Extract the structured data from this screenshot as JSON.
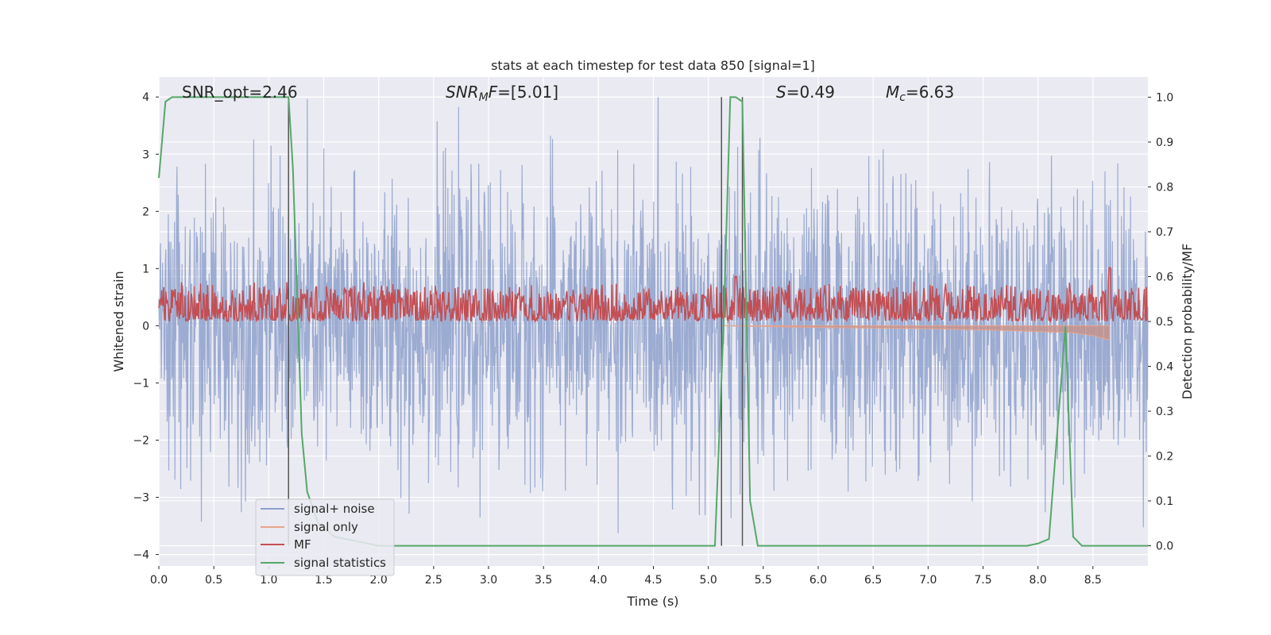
{
  "chart_data": {
    "type": "line",
    "title": "stats at each timestep for test data 850 [signal=1]",
    "xlabel": "Time (s)",
    "ylabel_left": "Whitened strain",
    "ylabel_right": "Detection probability/MF",
    "xlim": [
      0.0,
      9.0
    ],
    "ylim_left": [
      -4.2,
      4.35
    ],
    "ylim_right": [
      -0.045,
      1.045
    ],
    "x_ticks": [
      "0.0",
      "0.5",
      "1.0",
      "1.5",
      "2.0",
      "2.5",
      "3.0",
      "3.5",
      "4.0",
      "4.5",
      "5.0",
      "5.5",
      "6.0",
      "6.5",
      "7.0",
      "7.5",
      "8.0",
      "8.5"
    ],
    "x_tick_values": [
      0.0,
      0.5,
      1.0,
      1.5,
      2.0,
      2.5,
      3.0,
      3.5,
      4.0,
      4.5,
      5.0,
      5.5,
      6.0,
      6.5,
      7.0,
      7.5,
      8.0,
      8.5
    ],
    "y_left_ticks": [
      "4",
      "3",
      "2",
      "1",
      "0",
      "−1",
      "−2",
      "−3",
      "−4"
    ],
    "y_left_tick_values": [
      4,
      3,
      2,
      1,
      0,
      -1,
      -2,
      -3,
      -4
    ],
    "y_right_ticks": [
      "1.0",
      "0.9",
      "0.8",
      "0.7",
      "0.6",
      "0.5",
      "0.4",
      "0.3",
      "0.2",
      "0.1",
      "0.0"
    ],
    "y_right_tick_values": [
      1.0,
      0.9,
      0.8,
      0.7,
      0.6,
      0.5,
      0.4,
      0.3,
      0.2,
      0.1,
      0.0
    ],
    "grid": true,
    "legend_position": "lower-left",
    "annotations": {
      "snr_opt": "SNR_opt=2.46",
      "snr_mf_prefix": "SNR",
      "snr_mf_sub": "M",
      "snr_mf_rest": "F",
      "snr_mf_value": "=[5.01]",
      "s_label": "S",
      "s_value": "=0.49",
      "mc_label": "M",
      "mc_sub": "c",
      "mc_value": "=6.63"
    },
    "vertical_lines_x": [
      1.18,
      5.12,
      5.31
    ],
    "series": [
      {
        "name": "signal+ noise",
        "color": "#8da0cb",
        "axis": "left",
        "description_values": "noise band approx -2.5..2.5 with peaks to ±4"
      },
      {
        "name": "signal only",
        "color": "#e8a48c",
        "axis": "left",
        "envelope": {
          "x": [
            5.12,
            6.0,
            7.0,
            7.5,
            8.0,
            8.3,
            8.5,
            8.65
          ],
          "low": [
            0.0,
            -0.03,
            -0.05,
            -0.07,
            -0.1,
            -0.12,
            -0.17,
            -0.25
          ],
          "high": [
            0.0,
            0.0,
            0.0,
            0.0,
            0.0,
            0.0,
            0.0,
            0.0
          ]
        }
      },
      {
        "name": "MF",
        "color": "#c44e52",
        "axis": "right",
        "baseline": 0.52,
        "spread": 0.05,
        "peaks": [
          {
            "x": 5.25,
            "y": 0.6
          },
          {
            "x": 8.65,
            "y": 0.62
          }
        ]
      },
      {
        "name": "signal statistics",
        "color": "#55a868",
        "axis": "right",
        "x": [
          0.0,
          0.06,
          0.12,
          0.3,
          1.0,
          1.18,
          1.22,
          1.3,
          1.35,
          1.45,
          1.6,
          1.8,
          2.0,
          2.3,
          3.0,
          4.0,
          5.0,
          5.06,
          5.14,
          5.2,
          5.25,
          5.31,
          5.38,
          5.45,
          6.0,
          7.0,
          7.9,
          8.0,
          8.1,
          8.25,
          8.32,
          8.4,
          9.0
        ],
        "y": [
          0.82,
          0.99,
          1.0,
          1.0,
          1.0,
          1.0,
          0.84,
          0.25,
          0.12,
          0.05,
          0.02,
          0.01,
          0.0,
          0.0,
          0.0,
          0.0,
          0.0,
          0.0,
          0.5,
          1.0,
          1.0,
          0.99,
          0.1,
          0.0,
          0.0,
          0.0,
          0.0,
          0.005,
          0.015,
          0.49,
          0.02,
          0.0,
          0.0
        ]
      }
    ]
  }
}
